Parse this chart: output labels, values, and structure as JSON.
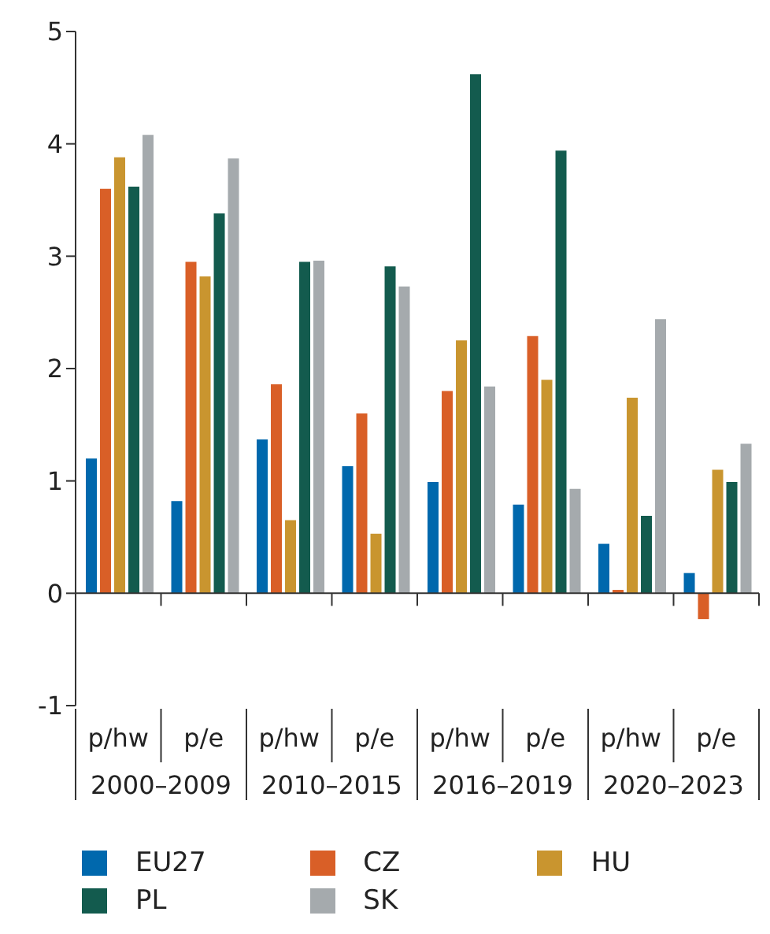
{
  "chart_data": {
    "type": "bar",
    "categories": [
      "p/hw",
      "p/e",
      "p/hw",
      "p/e",
      "p/hw",
      "p/e",
      "p/hw",
      "p/e"
    ],
    "annotations": [
      "2000–2009",
      "2010–2015",
      "2016–2019",
      "2020–2023"
    ],
    "series": [
      {
        "name": "EU27",
        "color": "#0068ad",
        "values": [
          1.2,
          0.82,
          1.37,
          1.13,
          0.99,
          0.79,
          0.44,
          0.18
        ]
      },
      {
        "name": "CZ",
        "color": "#d95f27",
        "values": [
          3.6,
          2.95,
          1.86,
          1.6,
          1.8,
          2.29,
          0.03,
          -0.23
        ]
      },
      {
        "name": "HU",
        "color": "#c9952f",
        "values": [
          3.88,
          2.82,
          0.65,
          0.53,
          2.25,
          1.9,
          1.74,
          1.1
        ]
      },
      {
        "name": "PL",
        "color": "#135b4e",
        "values": [
          3.62,
          3.38,
          2.95,
          2.91,
          4.62,
          3.94,
          0.69,
          0.99
        ]
      },
      {
        "name": "SK",
        "color": "#a5aaad",
        "values": [
          4.08,
          3.87,
          2.96,
          2.73,
          1.84,
          0.93,
          2.44,
          1.33
        ]
      }
    ],
    "ylim": [
      -1,
      5
    ],
    "yticks": [
      -1,
      0,
      1,
      2,
      3,
      4,
      5
    ],
    "ref_lines": [
      {
        "axis": "y",
        "value": 0,
        "color": "#333333"
      }
    ],
    "grid": false,
    "legend": "bottom"
  }
}
